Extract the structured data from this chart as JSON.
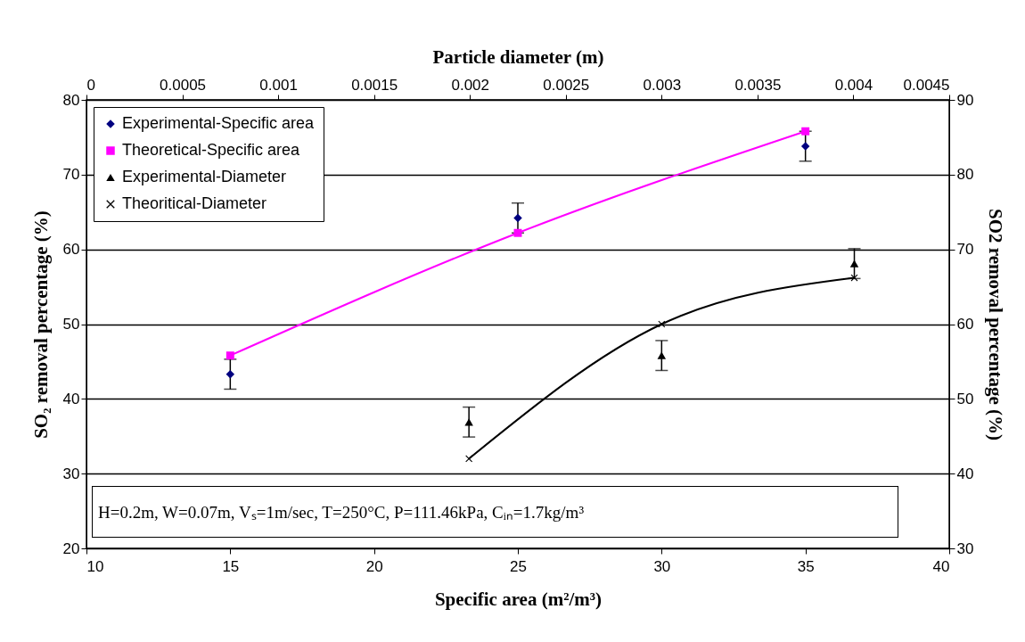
{
  "chart_data": {
    "type": "scatter",
    "xlabel": "Specific area (m²/m³)",
    "ylabel": "SO₂ removal percentage (%)",
    "y2label": "SO2 removal percentage (%)",
    "x2label": "Particle diameter (m)",
    "xlim": [
      10,
      40
    ],
    "xticks": [
      10,
      15,
      20,
      25,
      30,
      35,
      40
    ],
    "ylim": [
      20,
      80
    ],
    "yticks": [
      20,
      30,
      40,
      50,
      60,
      70,
      80
    ],
    "y2lim": [
      30,
      90
    ],
    "y2ticks": [
      30,
      40,
      50,
      60,
      70,
      80,
      90
    ],
    "x2lim": [
      0,
      0.0045
    ],
    "x2ticks": [
      0,
      0.0005,
      0.001,
      0.0015,
      0.002,
      0.0025,
      0.003,
      0.0035,
      0.004,
      0.0045
    ],
    "grid": "y",
    "legend": "top left",
    "annotations": [
      "H=0.2m, W=0.07m, Vₛ=1m/sec, T=250°C, P=111.46kPa,  Cᵢₙ=1.7kg/m³"
    ],
    "series": [
      {
        "name": "Experimental-Specific area",
        "type": "scatter",
        "marker": "diamond",
        "color": "#000080",
        "x": [
          15,
          25,
          35
        ],
        "values": [
          43.3,
          64.2,
          73.8
        ],
        "errors": [
          2,
          2,
          2
        ]
      },
      {
        "name": "Theoretical-Specific area",
        "type": "line",
        "marker": "square",
        "color": "#ff00ff",
        "x": [
          15,
          25,
          35
        ],
        "values": [
          45.8,
          62.2,
          75.8
        ]
      },
      {
        "name": "Experimental-Diameter",
        "type": "scatter",
        "marker": "triangle",
        "axis": "y2",
        "color": "#000000",
        "x": [
          23.3,
          30,
          36.7
        ],
        "values": [
          46.9,
          55.8,
          68.1
        ],
        "errors": [
          2,
          2,
          2
        ]
      },
      {
        "name": "Theoritical-Diameter",
        "type": "line",
        "marker": "cross",
        "axis": "y2",
        "color": "#000000",
        "x": [
          23.3,
          30,
          36.7
        ],
        "values": [
          42,
          60,
          66.2
        ]
      }
    ]
  }
}
